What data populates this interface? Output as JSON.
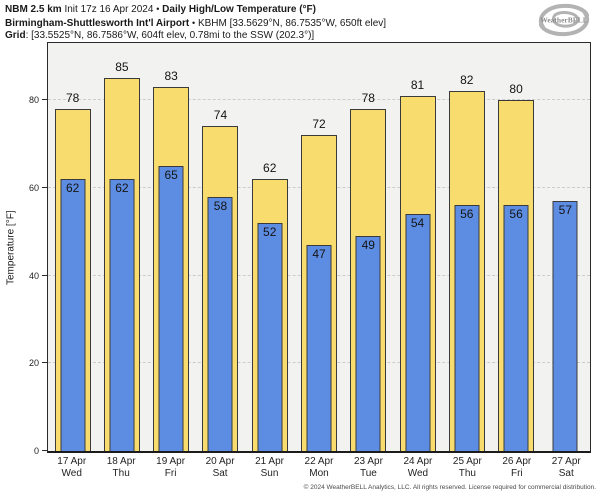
{
  "header": {
    "line1": {
      "model": "NBM 2.5 km",
      "init": "Init 17z 16 Apr 2024",
      "bullet": "•",
      "product": "Daily High/Low Temperature (°F)"
    },
    "line2": {
      "station": "Birmingham-Shuttlesworth Int'l Airport",
      "bullet": "•",
      "info": "KBHM [33.5629°N, 86.7535°W, 650ft elev]"
    },
    "line3": {
      "label": "Grid",
      "info": ": [33.5525°N, 86.7586°W, 604ft elev, 0.78mi to the SSW (202.3°)]"
    }
  },
  "logo": {
    "brand": "WeatherBELL"
  },
  "footer": {
    "copyright": "© 2024 WeatherBELL Analytics, LLC. All rights reserved. License required for commercial distribution."
  },
  "chart_data": {
    "type": "bar",
    "title": "Daily High/Low Temperature (°F)",
    "ylabel": "Temperature [°F]",
    "yticks": [
      0,
      20,
      40,
      60,
      80
    ],
    "ylim": [
      0,
      93
    ],
    "grid": "horizontal-dashed",
    "legend_position": "none",
    "plot_background": "#f2f2f0",
    "categories": [
      {
        "date": "17 Apr",
        "day": "Wed"
      },
      {
        "date": "18 Apr",
        "day": "Thu"
      },
      {
        "date": "19 Apr",
        "day": "Fri"
      },
      {
        "date": "20 Apr",
        "day": "Sat"
      },
      {
        "date": "21 Apr",
        "day": "Sun"
      },
      {
        "date": "22 Apr",
        "day": "Mon"
      },
      {
        "date": "23 Apr",
        "day": "Tue"
      },
      {
        "date": "24 Apr",
        "day": "Wed"
      },
      {
        "date": "25 Apr",
        "day": "Thu"
      },
      {
        "date": "26 Apr",
        "day": "Fri"
      },
      {
        "date": "27 Apr",
        "day": "Sat"
      }
    ],
    "series": [
      {
        "name": "High",
        "color": "#F9DC6E",
        "values": [
          78,
          85,
          83,
          74,
          62,
          72,
          78,
          81,
          82,
          80,
          null
        ]
      },
      {
        "name": "Low",
        "color": "#5D8DE2",
        "values": [
          62,
          62,
          65,
          58,
          52,
          47,
          49,
          54,
          56,
          56,
          57
        ]
      }
    ]
  }
}
